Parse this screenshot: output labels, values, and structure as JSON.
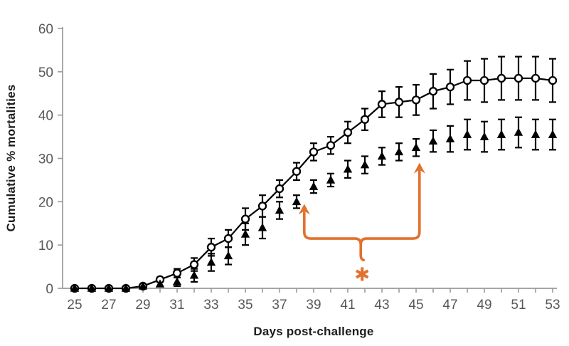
{
  "chart_data": {
    "type": "line",
    "title": "",
    "xlabel": "Days post-challenge",
    "ylabel": "Cumulative % mortalities",
    "xlim": [
      25,
      53
    ],
    "ylim": [
      0,
      60
    ],
    "grid": false,
    "legend": "none",
    "days": [
      25,
      26,
      27,
      28,
      29,
      30,
      31,
      32,
      33,
      34,
      35,
      36,
      37,
      38,
      39,
      40,
      41,
      42,
      43,
      44,
      45,
      46,
      47,
      48,
      49,
      50,
      51,
      52,
      53
    ],
    "x_tick_labels": [
      25,
      27,
      29,
      31,
      33,
      35,
      37,
      39,
      41,
      43,
      45,
      47,
      49,
      51,
      53
    ],
    "y_ticks": [
      0,
      10,
      20,
      30,
      40,
      50,
      60
    ],
    "series": [
      {
        "name": "open-circle-group",
        "marker": "open-circle",
        "connected": true,
        "color": "#000000",
        "values": [
          0,
          0,
          0,
          0,
          0.5,
          2,
          3.5,
          5.5,
          9.5,
          11.5,
          16,
          19,
          23,
          27,
          31.5,
          33,
          36,
          39,
          42.5,
          43,
          43.5,
          45.5,
          46.5,
          48,
          48,
          48.5,
          48.5,
          48.5,
          48
        ],
        "errors": [
          0,
          0,
          0,
          0,
          0,
          0.5,
          1,
          1.5,
          2,
          2,
          2.5,
          2.5,
          2,
          2,
          2,
          2,
          2.5,
          2.5,
          3,
          3.5,
          3.5,
          4,
          4,
          4.5,
          5,
          5,
          5,
          5,
          5
        ]
      },
      {
        "name": "filled-triangle-group",
        "marker": "filled-triangle",
        "connected": false,
        "color": "#000000",
        "values": [
          0,
          0,
          0,
          0,
          0.5,
          1,
          1.5,
          3,
          6,
          7.5,
          12.5,
          14,
          18,
          20,
          23.5,
          25,
          27.5,
          28.5,
          30.5,
          31.5,
          32.5,
          34,
          34.5,
          35.5,
          35,
          35.5,
          36,
          35.5,
          35.5
        ],
        "errors": [
          0,
          0,
          0,
          0,
          0,
          0.5,
          1,
          1.5,
          2,
          2,
          2.5,
          2.5,
          2,
          1.5,
          1.5,
          1.5,
          2,
          2,
          2,
          2,
          2,
          2.5,
          3,
          3.5,
          3.5,
          3.5,
          3.5,
          3.5,
          3.5
        ]
      }
    ],
    "annotation": {
      "symbol": "✱",
      "color": "#e2712e",
      "left_arrow_day": 38.45,
      "left_arrow_tip_value": 19.5,
      "right_arrow_day": 45.2,
      "right_arrow_tip_value": 29,
      "bar_value": 11.5,
      "spout_value": 7,
      "symbol_value": 3.2,
      "center_day": 41.8
    },
    "colors": {
      "axis": "#9a9a9a",
      "tick_label": "#58585a",
      "marker": "#000000",
      "background": "#ffffff"
    }
  }
}
